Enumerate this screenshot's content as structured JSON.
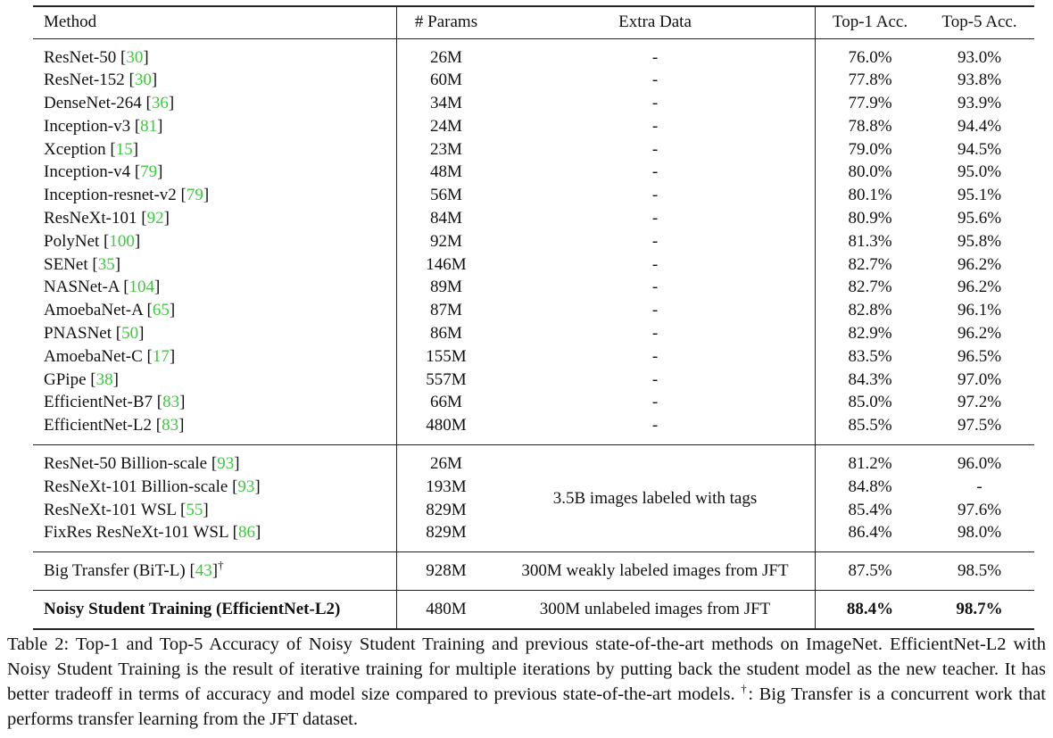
{
  "table": {
    "header": [
      "Method",
      "# Params",
      "Extra Data",
      "Top-1 Acc.",
      "Top-5 Acc."
    ],
    "groups": [
      {
        "rows": [
          {
            "method": [
              "ResNet-50 [",
              "30",
              "]"
            ],
            "params": "26M",
            "extra": "-",
            "top1": "76.0%",
            "top5": "93.0%"
          },
          {
            "method": [
              "ResNet-152 [",
              "30",
              "]"
            ],
            "params": "60M",
            "extra": "-",
            "top1": "77.8%",
            "top5": "93.8%"
          },
          {
            "method": [
              "DenseNet-264 [",
              "36",
              "]"
            ],
            "params": "34M",
            "extra": "-",
            "top1": "77.9%",
            "top5": "93.9%"
          },
          {
            "method": [
              "Inception-v3 [",
              "81",
              "]"
            ],
            "params": "24M",
            "extra": "-",
            "top1": "78.8%",
            "top5": "94.4%"
          },
          {
            "method": [
              "Xception [",
              "15",
              "]"
            ],
            "params": "23M",
            "extra": "-",
            "top1": "79.0%",
            "top5": "94.5%"
          },
          {
            "method": [
              "Inception-v4 [",
              "79",
              "]"
            ],
            "params": "48M",
            "extra": "-",
            "top1": "80.0%",
            "top5": "95.0%"
          },
          {
            "method": [
              "Inception-resnet-v2 [",
              "79",
              "]"
            ],
            "params": "56M",
            "extra": "-",
            "top1": "80.1%",
            "top5": "95.1%"
          },
          {
            "method": [
              "ResNeXt-101 [",
              "92",
              "]"
            ],
            "params": "84M",
            "extra": "-",
            "top1": "80.9%",
            "top5": "95.6%"
          },
          {
            "method": [
              "PolyNet [",
              "100",
              "]"
            ],
            "params": "92M",
            "extra": "-",
            "top1": "81.3%",
            "top5": "95.8%"
          },
          {
            "method": [
              "SENet [",
              "35",
              "]"
            ],
            "params": "146M",
            "extra": "-",
            "top1": "82.7%",
            "top5": "96.2%"
          },
          {
            "method": [
              "NASNet-A [",
              "104",
              "]"
            ],
            "params": "89M",
            "extra": "-",
            "top1": "82.7%",
            "top5": "96.2%"
          },
          {
            "method": [
              "AmoebaNet-A [",
              "65",
              "]"
            ],
            "params": "87M",
            "extra": "-",
            "top1": "82.8%",
            "top5": "96.1%"
          },
          {
            "method": [
              "PNASNet [",
              "50",
              "]"
            ],
            "params": "86M",
            "extra": "-",
            "top1": "82.9%",
            "top5": "96.2%"
          },
          {
            "method": [
              "AmoebaNet-C [",
              "17",
              "]"
            ],
            "params": "155M",
            "extra": "-",
            "top1": "83.5%",
            "top5": "96.5%"
          },
          {
            "method": [
              "GPipe [",
              "38",
              "]"
            ],
            "params": "557M",
            "extra": "-",
            "top1": "84.3%",
            "top5": "97.0%"
          },
          {
            "method": [
              "EfficientNet-B7 [",
              "83",
              "]"
            ],
            "params": "66M",
            "extra": "-",
            "top1": "85.0%",
            "top5": "97.2%"
          },
          {
            "method": [
              "EfficientNet-L2 [",
              "83",
              "]"
            ],
            "params": "480M",
            "extra": "-",
            "top1": "85.5%",
            "top5": "97.5%"
          }
        ]
      },
      {
        "extra": "3.5B images labeled with tags",
        "rows": [
          {
            "method": [
              "ResNet-50 Billion-scale [",
              "93",
              "]"
            ],
            "params": "26M",
            "top1": "81.2%",
            "top5": "96.0%"
          },
          {
            "method": [
              "ResNeXt-101 Billion-scale [",
              "93",
              "]"
            ],
            "params": "193M",
            "top1": "84.8%",
            "top5": "-"
          },
          {
            "method": [
              "ResNeXt-101 WSL [",
              "55",
              "]"
            ],
            "params": "829M",
            "top1": "85.4%",
            "top5": "97.6%"
          },
          {
            "method": [
              "FixRes ResNeXt-101 WSL [",
              "86",
              "]"
            ],
            "params": "829M",
            "top1": "86.4%",
            "top5": "98.0%"
          }
        ]
      },
      {
        "rows": [
          {
            "method": [
              "Big Transfer (BiT-L) [",
              "43",
              "]"
            ],
            "note": "†",
            "params": "928M",
            "extra": "300M weakly labeled images from JFT",
            "top1": "87.5%",
            "top5": "98.5%"
          }
        ]
      },
      {
        "rows": [
          {
            "method": [
              "Noisy Student Training (EfficientNet-L2)"
            ],
            "params": "480M",
            "extra": "300M unlabeled images from JFT",
            "top1": "88.4%",
            "top5": "98.7%"
          }
        ]
      }
    ]
  },
  "caption": {
    "before": "Table 2: Top-1 and Top-5 Accuracy of Noisy Student Training and previous state-of-the-art methods on ImageNet. EfficientNet-L2 with Noisy Student Training is the result of iterative training for multiple iterations by putting back the student model as the new teacher. It has better tradeoff in terms of accuracy and model size compared to previous state-of-the-art models. ",
    "mark": "†",
    "after": ": Big Transfer is a concurrent work that performs transfer learning from the JFT dataset."
  }
}
